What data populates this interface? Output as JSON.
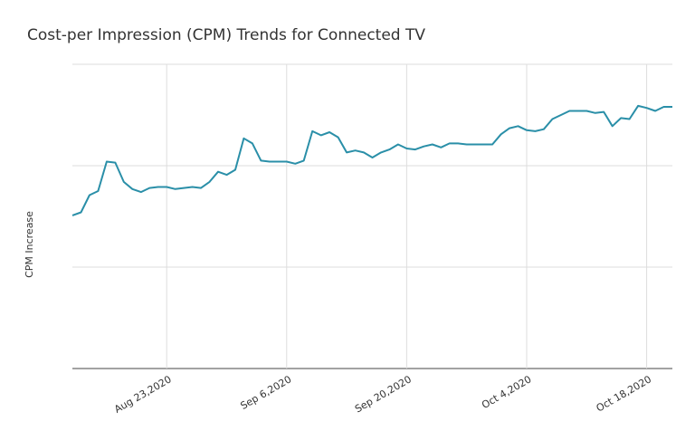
{
  "chart_data": {
    "type": "line",
    "title": "Cost-per Impression (CPM) Trends for Connected TV",
    "y_label": "CPM Increase",
    "x": [
      "2020-08-12",
      "2020-08-13",
      "2020-08-14",
      "2020-08-15",
      "2020-08-16",
      "2020-08-17",
      "2020-08-18",
      "2020-08-19",
      "2020-08-20",
      "2020-08-21",
      "2020-08-22",
      "2020-08-23",
      "2020-08-24",
      "2020-08-25",
      "2020-08-26",
      "2020-08-27",
      "2020-08-28",
      "2020-08-29",
      "2020-08-30",
      "2020-08-31",
      "2020-09-01",
      "2020-09-02",
      "2020-09-03",
      "2020-09-04",
      "2020-09-05",
      "2020-09-06",
      "2020-09-07",
      "2020-09-08",
      "2020-09-09",
      "2020-09-10",
      "2020-09-11",
      "2020-09-12",
      "2020-09-13",
      "2020-09-14",
      "2020-09-15",
      "2020-09-16",
      "2020-09-17",
      "2020-09-18",
      "2020-09-19",
      "2020-09-20",
      "2020-09-21",
      "2020-09-22",
      "2020-09-23",
      "2020-09-24",
      "2020-09-25",
      "2020-09-26",
      "2020-09-27",
      "2020-09-28",
      "2020-09-29",
      "2020-09-30",
      "2020-10-01",
      "2020-10-02",
      "2020-10-03",
      "2020-10-04",
      "2020-10-05",
      "2020-10-06",
      "2020-10-07",
      "2020-10-08",
      "2020-10-09",
      "2020-10-10",
      "2020-10-11",
      "2020-10-12",
      "2020-10-13",
      "2020-10-14",
      "2020-10-15",
      "2020-10-16",
      "2020-10-17",
      "2020-10-18",
      "2020-10-19",
      "2020-10-20",
      "2020-10-21"
    ],
    "series": [
      {
        "name": "CPM Increase",
        "color": "#2a8fa8",
        "values": [
          1.51,
          1.54,
          1.71,
          1.75,
          2.04,
          2.03,
          1.84,
          1.77,
          1.74,
          1.78,
          1.79,
          1.79,
          1.77,
          1.78,
          1.79,
          1.78,
          1.84,
          1.94,
          1.91,
          1.96,
          2.27,
          2.22,
          2.05,
          2.04,
          2.04,
          2.04,
          2.02,
          2.05,
          2.34,
          2.3,
          2.33,
          2.28,
          2.13,
          2.15,
          2.13,
          2.08,
          2.13,
          2.16,
          2.21,
          2.17,
          2.16,
          2.19,
          2.21,
          2.18,
          2.22,
          2.22,
          2.21,
          2.21,
          2.21,
          2.21,
          2.31,
          2.37,
          2.39,
          2.35,
          2.34,
          2.36,
          2.46,
          2.5,
          2.54,
          2.54,
          2.54,
          2.52,
          2.53,
          2.39,
          2.47,
          2.46,
          2.59,
          2.57,
          2.54,
          2.58,
          2.58
        ]
      }
    ],
    "xlim": [
      "2020-08-12",
      "2020-10-21"
    ],
    "xticks": [
      {
        "value": "2020-08-23",
        "label": "Aug 23,2020"
      },
      {
        "value": "2020-09-06",
        "label": "Sep 6,2020"
      },
      {
        "value": "2020-09-20",
        "label": "Sep 20,2020"
      },
      {
        "value": "2020-10-04",
        "label": "Oct 4,2020"
      },
      {
        "value": "2020-10-18",
        "label": "Oct 18,2020"
      }
    ],
    "ylim": [
      0,
      3
    ],
    "ygrid": [
      0,
      1,
      2,
      3
    ],
    "grid": true
  }
}
